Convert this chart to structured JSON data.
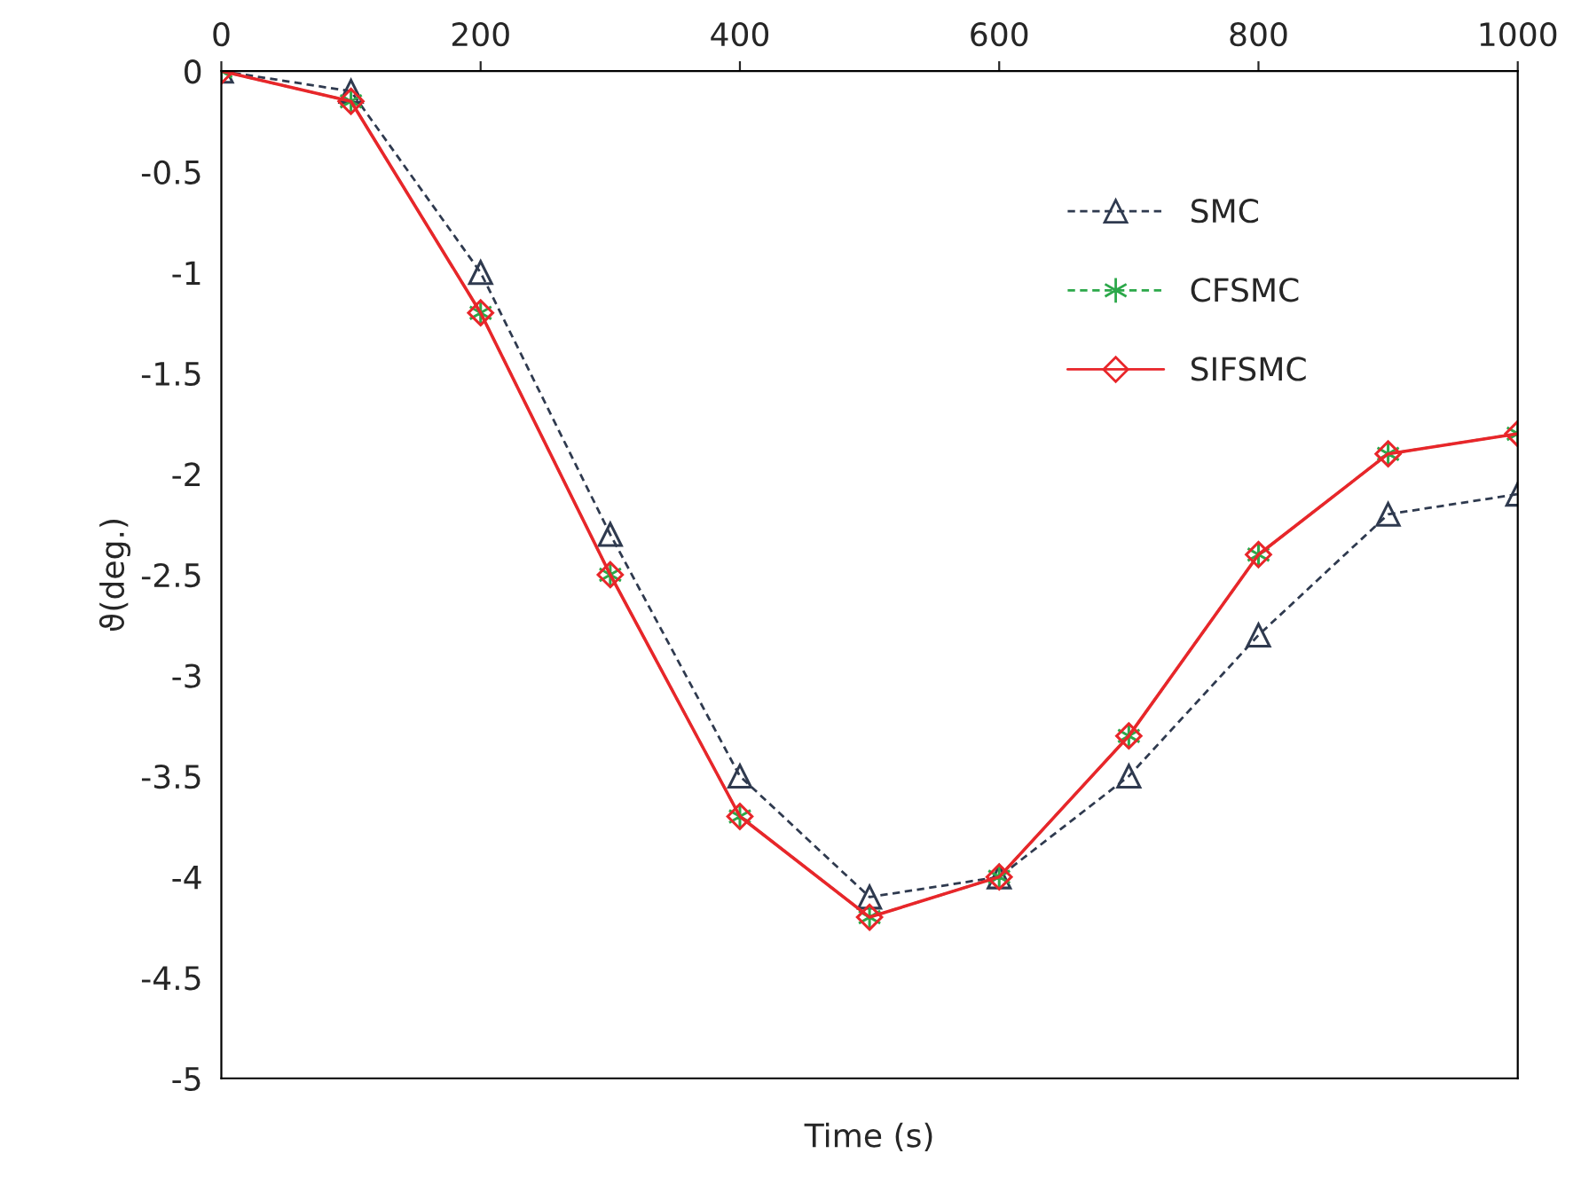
{
  "chart_data": {
    "type": "line",
    "xlabel": "Time (s)",
    "ylabel": "ϑ(deg.)",
    "x": [
      0,
      100,
      200,
      300,
      400,
      500,
      600,
      700,
      800,
      900,
      1000
    ],
    "xlim": [
      0,
      1000
    ],
    "xticks": [
      0,
      200,
      400,
      600,
      800,
      1000
    ],
    "ylim": [
      -5,
      0
    ],
    "yticks": [
      -5,
      -4.5,
      -4,
      -3.5,
      -3,
      -2.5,
      -2,
      -1.5,
      -1,
      -0.5,
      0
    ],
    "grid": false,
    "legend": "right",
    "series": [
      {
        "name": "SMC",
        "color": "#2f3a4f",
        "marker": "triangle",
        "line_style": "dashed",
        "values": [
          0,
          -0.1,
          -1.0,
          -2.3,
          -3.5,
          -4.1,
          -4.0,
          -3.5,
          -2.8,
          -2.2,
          -2.1
        ]
      },
      {
        "name": "CFSMC",
        "color": "#2ca84a",
        "marker": "cross",
        "line_style": "dashed",
        "values": [
          0,
          -0.15,
          -1.2,
          -2.5,
          -3.7,
          -4.2,
          -4.0,
          -3.3,
          -2.4,
          -1.9,
          -1.8
        ]
      },
      {
        "name": "SIFSMC",
        "color": "#e8262a",
        "marker": "diamond",
        "line_style": "solid",
        "values": [
          0,
          -0.15,
          -1.2,
          -2.5,
          -3.7,
          -4.2,
          -4.0,
          -3.3,
          -2.4,
          -1.9,
          -1.8
        ]
      }
    ]
  }
}
